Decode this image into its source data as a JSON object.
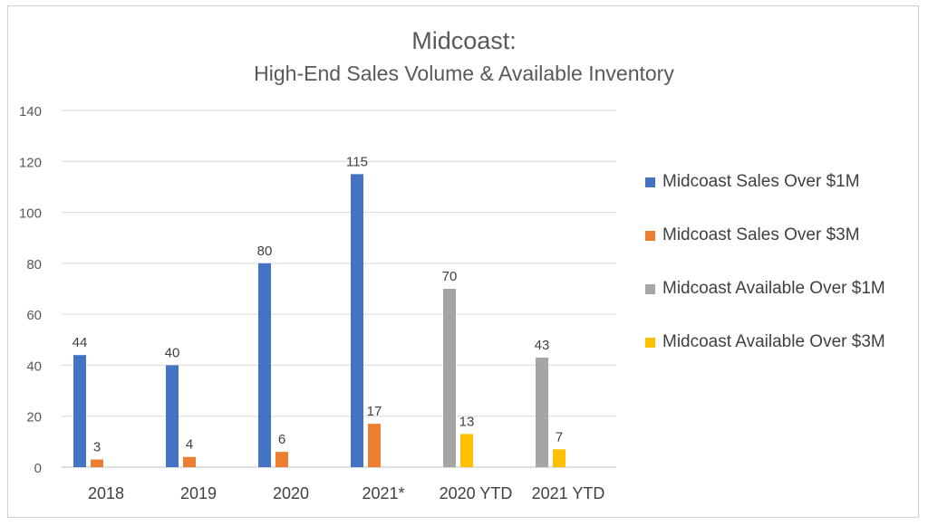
{
  "chart_data": {
    "type": "bar",
    "title": "Midcoast:",
    "subtitle": "High-End Sales Volume & Available Inventory",
    "categories": [
      "2018",
      "2019",
      "2020",
      "2021*",
      "2020 YTD",
      "2021 YTD"
    ],
    "series": [
      {
        "name": "Midcoast Sales Over $1M",
        "color": "#4472C4",
        "values": [
          44,
          40,
          80,
          115,
          null,
          null
        ]
      },
      {
        "name": "Midcoast Sales Over $3M",
        "color": "#ED7D31",
        "values": [
          3,
          4,
          6,
          17,
          null,
          null
        ]
      },
      {
        "name": "Midcoast Available Over $1M",
        "color": "#A5A5A5",
        "values": [
          null,
          null,
          null,
          null,
          70,
          43
        ]
      },
      {
        "name": "Midcoast Available Over $3M",
        "color": "#FFC000",
        "values": [
          null,
          null,
          null,
          null,
          13,
          7
        ]
      }
    ],
    "ylim": [
      0,
      140
    ],
    "yticks": [
      0,
      20,
      40,
      60,
      80,
      100,
      120,
      140
    ],
    "grid": true,
    "legend_position": "right",
    "data_labels": true
  }
}
